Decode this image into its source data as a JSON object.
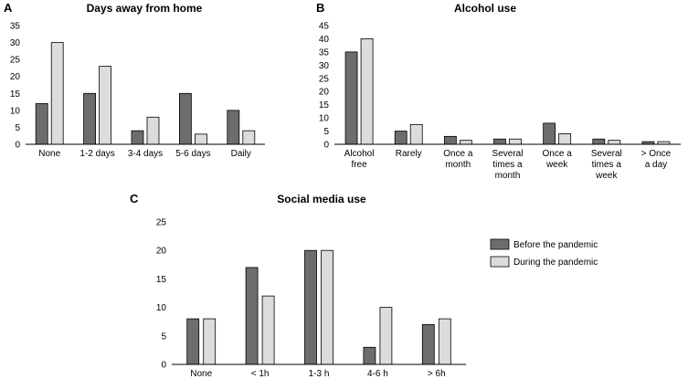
{
  "colors": {
    "before": "#6d6d6d",
    "during": "#dcdcdc",
    "stroke": "#000000"
  },
  "legend": {
    "before_label": "Before the pandemic",
    "during_label": "During the pandemic"
  },
  "chart_data": [
    {
      "panel": "A",
      "type": "bar",
      "title": "Days away from home",
      "categories": [
        "None",
        "1-2 days",
        "3-4 days",
        "5-6 days",
        "Daily"
      ],
      "series": [
        {
          "name": "Before the pandemic",
          "values": [
            12,
            15,
            4,
            15,
            10
          ]
        },
        {
          "name": "During the pandemic",
          "values": [
            30,
            23,
            8,
            3,
            4
          ]
        }
      ],
      "ylim": [
        0,
        35
      ],
      "yticks": [
        0,
        5,
        10,
        15,
        20,
        25,
        30,
        35
      ]
    },
    {
      "panel": "B",
      "type": "bar",
      "title": "Alcohol use",
      "categories": [
        "Alcohol free",
        "Rarely",
        "Once a month",
        "Several times a month",
        "Once a week",
        "Several times a week",
        "> Once a day"
      ],
      "series": [
        {
          "name": "Before the pandemic",
          "values": [
            35,
            5,
            3,
            2,
            8,
            2,
            1
          ]
        },
        {
          "name": "During the pandemic",
          "values": [
            40,
            7.5,
            1.5,
            2,
            4,
            1.5,
            1
          ]
        }
      ],
      "ylim": [
        0,
        45
      ],
      "yticks": [
        0,
        5,
        10,
        15,
        20,
        25,
        30,
        35,
        40,
        45
      ]
    },
    {
      "panel": "C",
      "type": "bar",
      "title": "Social media use",
      "categories": [
        "None",
        "< 1h",
        "1-3 h",
        "4-6 h",
        "> 6h"
      ],
      "series": [
        {
          "name": "Before the pandemic",
          "values": [
            8,
            17,
            20,
            3,
            7
          ]
        },
        {
          "name": "During the pandemic",
          "values": [
            8,
            12,
            20,
            10,
            8
          ]
        }
      ],
      "ylim": [
        0,
        25
      ],
      "yticks": [
        0,
        5,
        10,
        15,
        20,
        25
      ]
    }
  ]
}
